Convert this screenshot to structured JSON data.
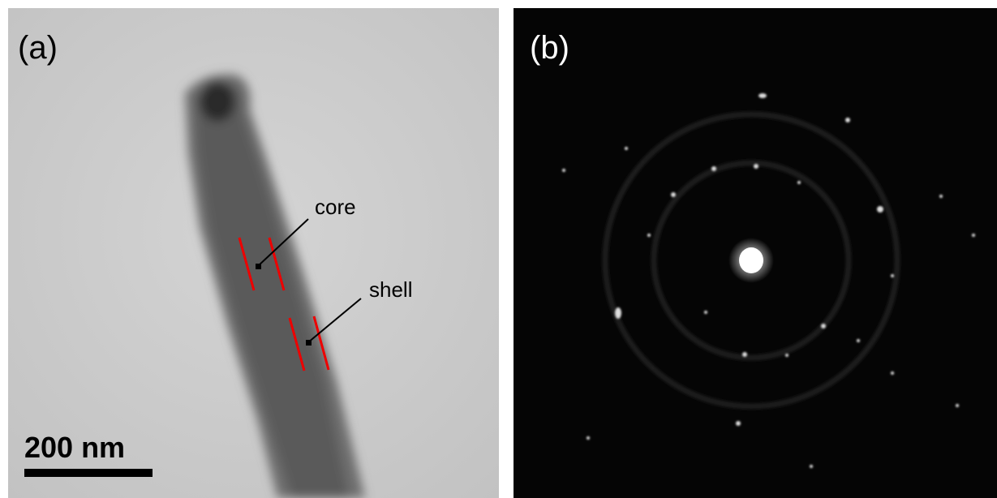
{
  "panels": [
    {
      "label": "(a)",
      "annotations": [
        "core",
        "shell"
      ],
      "scale_bar": "200 nm"
    },
    {
      "label": "(b)"
    }
  ]
}
